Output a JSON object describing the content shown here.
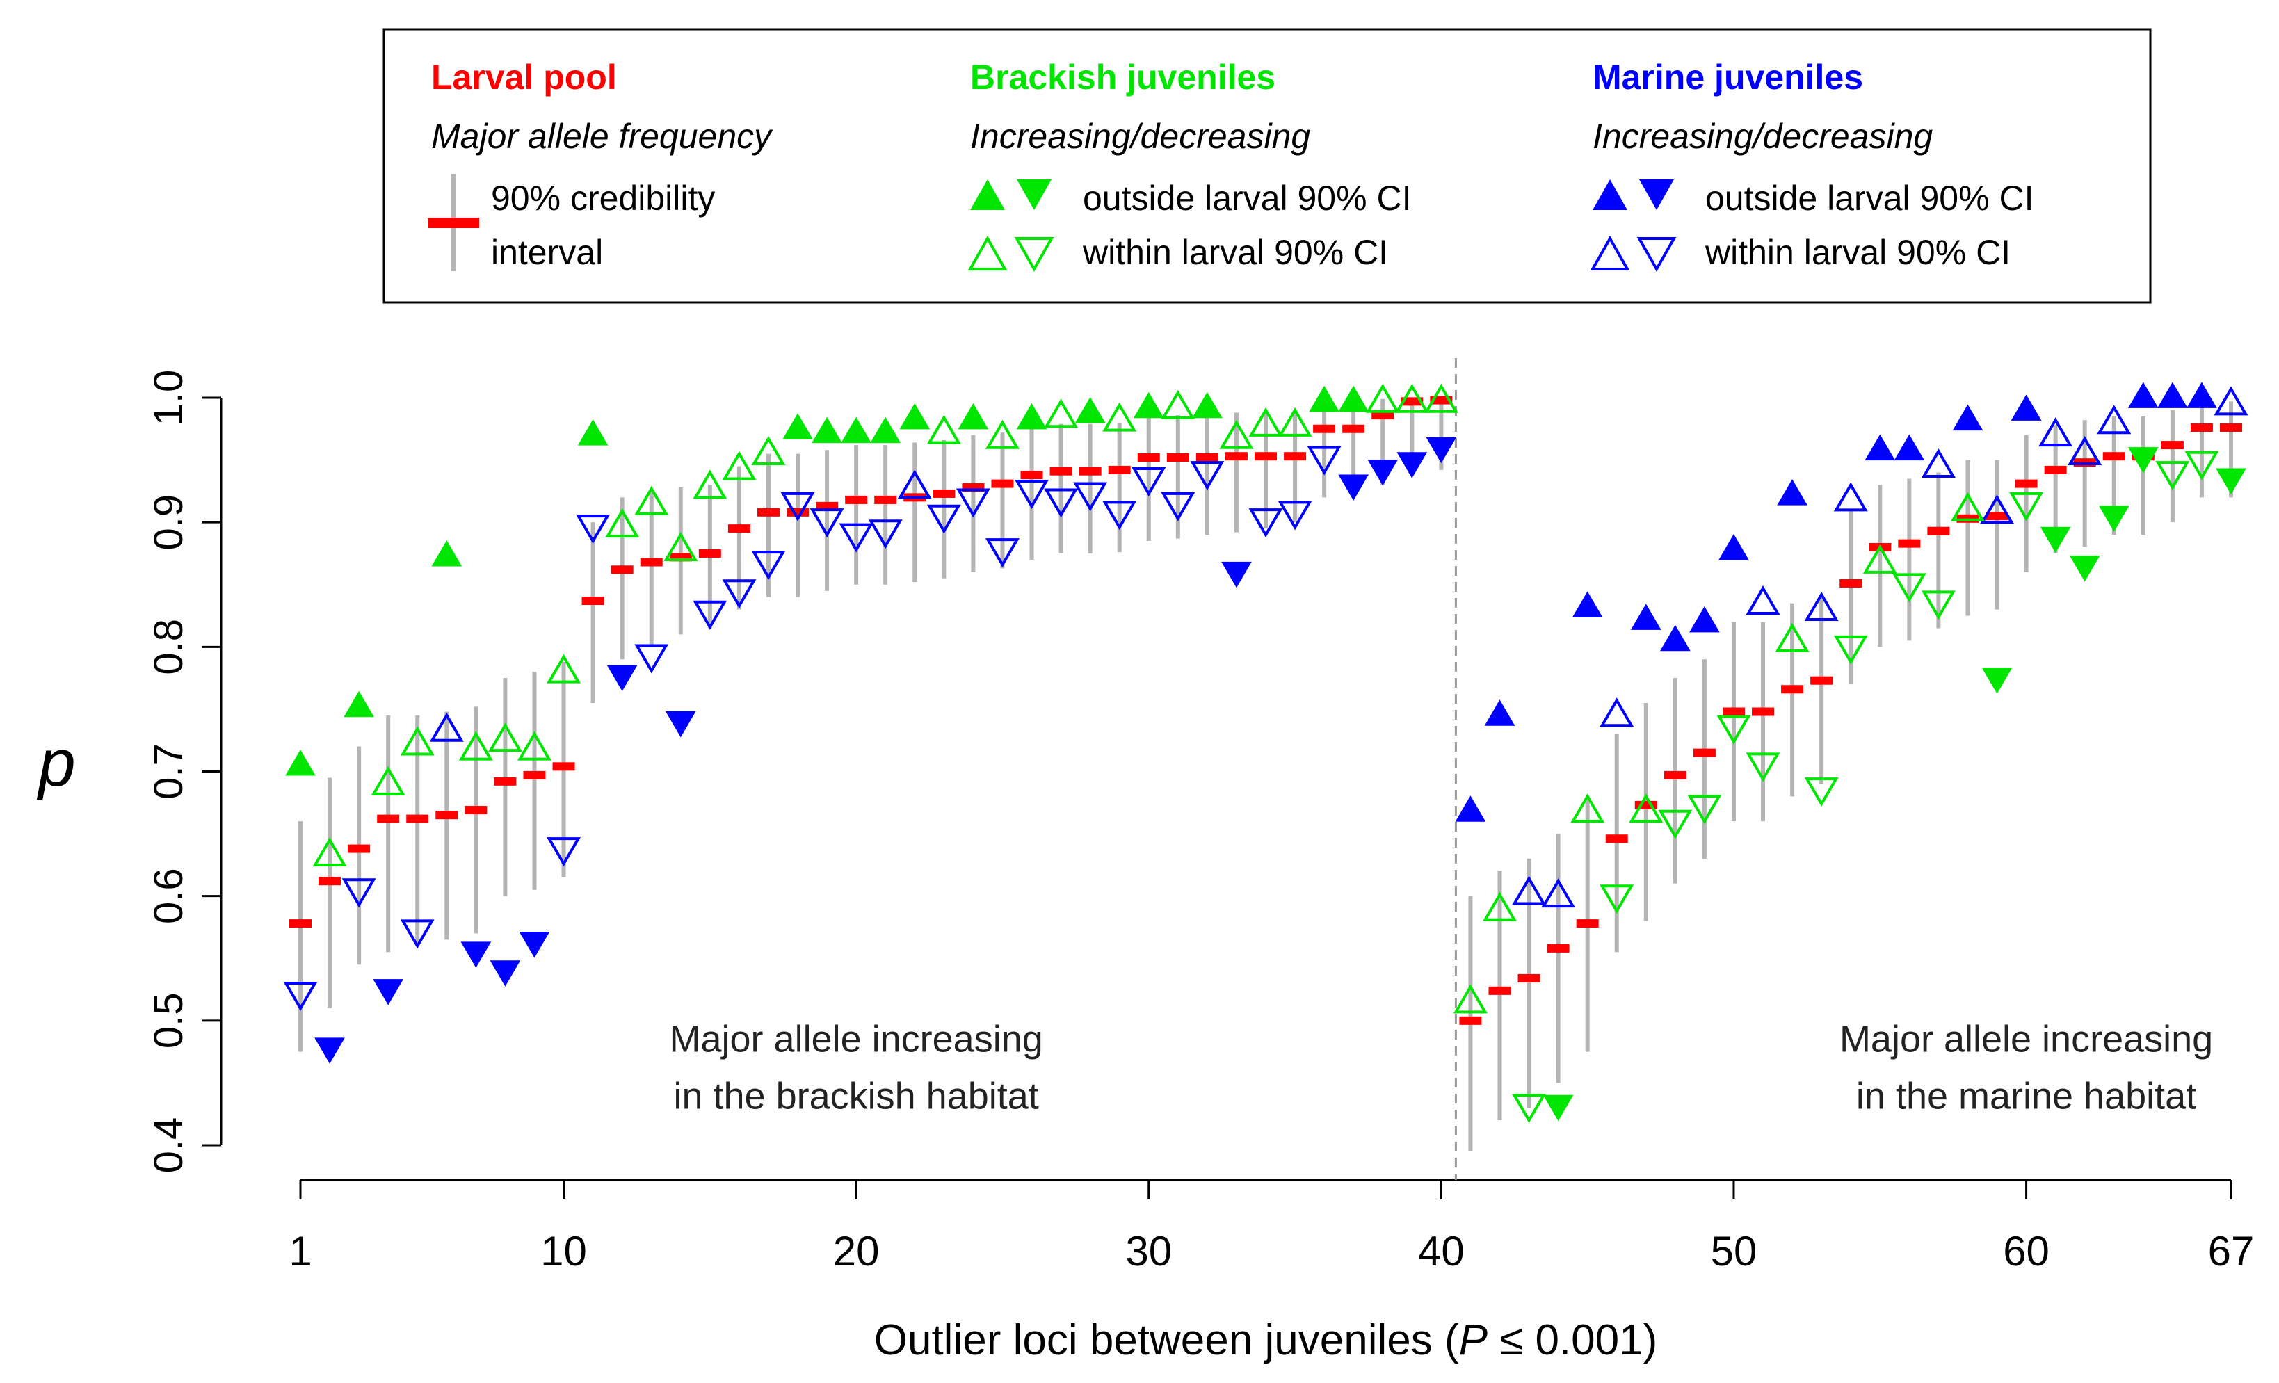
{
  "chart_data": {
    "type": "scatter",
    "title": "",
    "xlabel_prefix": "Outlier loci between juveniles (",
    "xlabel_italic": "P",
    "xlabel_suffix": " ≤ 0.001)",
    "ylabel": "p",
    "ylim": [
      0.4,
      1.0
    ],
    "xlim": [
      1,
      67
    ],
    "x_ticks": [
      1,
      10,
      20,
      30,
      40,
      50,
      60,
      67
    ],
    "y_ticks": [
      0.4,
      0.5,
      0.6,
      0.7,
      0.8,
      0.9,
      1.0
    ],
    "y_tick_labels": [
      "0.4",
      "0.5",
      "0.6",
      "0.7",
      "0.8",
      "0.9",
      "1.0"
    ],
    "divider_x": 40.5,
    "annotations": [
      {
        "lines": [
          "Major allele increasing",
          "in the brackish habitat"
        ],
        "x": 20,
        "y": 0.475
      },
      {
        "lines": [
          "Major allele increasing",
          "in the marine habitat"
        ],
        "x": 60,
        "y": 0.475
      }
    ],
    "colors": {
      "larval": "#ff0000",
      "brackish": "#00e600",
      "marine": "#0000ff",
      "ci": "#b4b4b4",
      "divider": "#999999"
    },
    "legend": {
      "larval_title": "Larval pool",
      "larval_subtitle": "Major allele frequency",
      "ci_label_1": "90% credibility",
      "ci_label_2": "interval",
      "brackish_title": "Brackish juveniles",
      "brackish_subtitle": "Increasing/decreasing",
      "marine_title": "Marine juveniles",
      "marine_subtitle": "Increasing/decreasing",
      "outside_label": "outside larval 90% CI",
      "within_label": "within larval 90% CI"
    },
    "larval_p": [
      0.578,
      0.612,
      0.638,
      0.662,
      0.662,
      0.665,
      0.669,
      0.692,
      0.697,
      0.704,
      0.837,
      0.862,
      0.868,
      0.872,
      0.875,
      0.895,
      0.908,
      0.908,
      0.913,
      0.918,
      0.918,
      0.92,
      0.923,
      0.928,
      0.931,
      0.938,
      0.941,
      0.941,
      0.942,
      0.952,
      0.952,
      0.952,
      0.953,
      0.953,
      0.953,
      0.975,
      0.975,
      0.986,
      0.997,
      0.998,
      0.5,
      0.524,
      0.534,
      0.558,
      0.578,
      0.646,
      0.673,
      0.697,
      0.715,
      0.748,
      0.748,
      0.766,
      0.773,
      0.851,
      0.88,
      0.883,
      0.893,
      0.903,
      0.905,
      0.931,
      0.942,
      0.948,
      0.953,
      0.953,
      0.962,
      0.976,
      0.976
    ],
    "ci_low": [
      0.475,
      0.51,
      0.545,
      0.555,
      0.56,
      0.565,
      0.57,
      0.6,
      0.605,
      0.615,
      0.755,
      0.79,
      0.8,
      0.81,
      0.815,
      0.83,
      0.84,
      0.84,
      0.845,
      0.85,
      0.85,
      0.852,
      0.855,
      0.86,
      0.863,
      0.87,
      0.875,
      0.875,
      0.876,
      0.885,
      0.887,
      0.89,
      0.892,
      0.895,
      0.9,
      0.92,
      0.922,
      0.93,
      0.94,
      0.942,
      0.395,
      0.42,
      0.43,
      0.45,
      0.475,
      0.555,
      0.58,
      0.61,
      0.63,
      0.66,
      0.66,
      0.68,
      0.69,
      0.77,
      0.8,
      0.805,
      0.815,
      0.825,
      0.83,
      0.86,
      0.875,
      0.88,
      0.89,
      0.89,
      0.9,
      0.92,
      0.92
    ],
    "ci_high": [
      0.66,
      0.695,
      0.72,
      0.745,
      0.745,
      0.748,
      0.752,
      0.775,
      0.78,
      0.788,
      0.9,
      0.92,
      0.925,
      0.928,
      0.93,
      0.945,
      0.955,
      0.955,
      0.958,
      0.962,
      0.962,
      0.964,
      0.966,
      0.97,
      0.972,
      0.977,
      0.979,
      0.979,
      0.98,
      0.986,
      0.986,
      0.987,
      0.988,
      0.988,
      0.988,
      0.996,
      0.996,
      0.999,
      1.0,
      1.0,
      0.6,
      0.62,
      0.63,
      0.65,
      0.68,
      0.73,
      0.755,
      0.775,
      0.79,
      0.82,
      0.82,
      0.835,
      0.84,
      0.91,
      0.93,
      0.935,
      0.94,
      0.95,
      0.95,
      0.97,
      0.978,
      0.982,
      0.985,
      0.985,
      0.99,
      0.997,
      0.997
    ],
    "brackish_p": [
      0.705,
      0.633,
      0.752,
      0.69,
      0.722,
      0.873,
      0.718,
      0.725,
      0.718,
      0.78,
      0.97,
      0.897,
      0.915,
      0.878,
      0.928,
      0.943,
      0.955,
      0.975,
      0.972,
      0.972,
      0.972,
      0.983,
      0.972,
      0.983,
      0.968,
      0.983,
      0.985,
      0.988,
      0.982,
      0.992,
      0.992,
      0.992,
      0.968,
      0.978,
      0.978,
      0.997,
      0.997,
      0.997,
      0.997,
      0.997,
      0.515,
      0.589,
      0.432,
      0.432,
      0.668,
      0.6,
      0.668,
      0.66,
      0.672,
      0.736,
      0.706,
      0.805,
      0.686,
      0.8,
      0.868,
      0.85,
      0.836,
      0.91,
      0.775,
      0.915,
      0.888,
      0.865,
      0.905,
      0.952,
      0.94,
      0.948,
      0.935
    ],
    "brackish_dir": [
      "U",
      "U",
      "U",
      "U",
      "U",
      "U",
      "U",
      "U",
      "U",
      "U",
      "U",
      "U",
      "U",
      "U",
      "U",
      "U",
      "U",
      "U",
      "U",
      "U",
      "U",
      "U",
      "U",
      "U",
      "U",
      "U",
      "U",
      "U",
      "U",
      "U",
      "U",
      "U",
      "U",
      "U",
      "U",
      "U",
      "U",
      "U",
      "U",
      "U",
      "U",
      "U",
      "D",
      "D",
      "U",
      "D",
      "U",
      "D",
      "D",
      "D",
      "D",
      "U",
      "D",
      "D",
      "U",
      "D",
      "D",
      "U",
      "D",
      "D",
      "D",
      "D",
      "D",
      "D",
      "D",
      "D",
      "D"
    ],
    "brackish_out": [
      1,
      0,
      1,
      0,
      0,
      1,
      0,
      0,
      0,
      0,
      1,
      0,
      0,
      0,
      0,
      0,
      0,
      1,
      1,
      1,
      1,
      1,
      0,
      1,
      0,
      1,
      0,
      1,
      0,
      1,
      0,
      1,
      0,
      0,
      0,
      1,
      1,
      0,
      0,
      0,
      0,
      0,
      0,
      1,
      0,
      0,
      0,
      0,
      0,
      0,
      0,
      0,
      0,
      0,
      0,
      0,
      0,
      0,
      1,
      0,
      1,
      1,
      1,
      1,
      0,
      0,
      1
    ],
    "marine_p": [
      0.522,
      0.478,
      0.605,
      0.525,
      0.572,
      0.733,
      0.555,
      0.54,
      0.563,
      0.638,
      0.897,
      0.777,
      0.793,
      0.74,
      0.828,
      0.845,
      0.868,
      0.915,
      0.902,
      0.89,
      0.893,
      0.928,
      0.905,
      0.918,
      0.878,
      0.925,
      0.918,
      0.923,
      0.908,
      0.935,
      0.915,
      0.94,
      0.86,
      0.902,
      0.908,
      0.952,
      0.93,
      0.942,
      0.948,
      0.96,
      0.668,
      0.745,
      0.602,
      0.6,
      0.832,
      0.745,
      0.822,
      0.805,
      0.82,
      0.878,
      0.835,
      0.922,
      0.83,
      0.918,
      0.958,
      0.958,
      0.945,
      0.982,
      0.908,
      0.99,
      0.97,
      0.955,
      0.98,
      1.0,
      1.0,
      1.0,
      0.995
    ],
    "marine_dir": [
      "D",
      "D",
      "D",
      "D",
      "D",
      "U",
      "D",
      "D",
      "D",
      "D",
      "D",
      "D",
      "D",
      "D",
      "D",
      "D",
      "D",
      "D",
      "D",
      "D",
      "D",
      "U",
      "D",
      "D",
      "D",
      "D",
      "D",
      "D",
      "D",
      "D",
      "D",
      "D",
      "D",
      "D",
      "D",
      "D",
      "D",
      "D",
      "D",
      "D",
      "U",
      "U",
      "U",
      "U",
      "U",
      "U",
      "U",
      "U",
      "U",
      "U",
      "U",
      "U",
      "U",
      "U",
      "U",
      "U",
      "U",
      "U",
      "U",
      "U",
      "U",
      "U",
      "U",
      "U",
      "U",
      "U",
      "U"
    ],
    "marine_out": [
      0,
      1,
      0,
      1,
      0,
      0,
      1,
      1,
      1,
      0,
      0,
      1,
      0,
      1,
      0,
      0,
      0,
      0,
      0,
      0,
      0,
      0,
      0,
      0,
      0,
      0,
      0,
      0,
      0,
      0,
      0,
      0,
      1,
      0,
      0,
      0,
      1,
      1,
      1,
      1,
      1,
      1,
      0,
      0,
      1,
      0,
      1,
      1,
      1,
      1,
      0,
      1,
      0,
      0,
      1,
      1,
      0,
      1,
      0,
      1,
      0,
      0,
      0,
      1,
      1,
      1,
      0
    ]
  }
}
